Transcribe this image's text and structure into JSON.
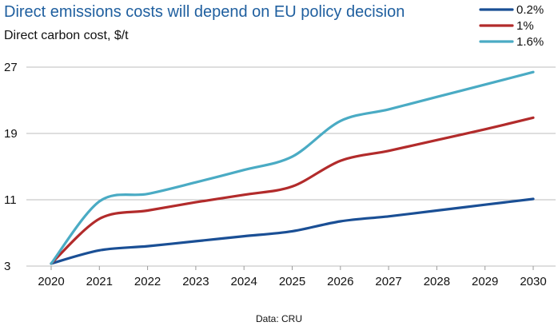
{
  "chart_data": {
    "type": "line",
    "title": "Direct emissions costs will depend on EU policy decision",
    "subtitle": "Direct carbon cost, $/t",
    "xlabel": "",
    "ylabel": "",
    "source": "Data: CRU",
    "x": [
      2020,
      2021,
      2022,
      2023,
      2024,
      2025,
      2026,
      2027,
      2028,
      2029,
      2030
    ],
    "xticks": [
      "2020",
      "2021",
      "2022",
      "2023",
      "2024",
      "2025",
      "2026",
      "2027",
      "2028",
      "2029",
      "2030"
    ],
    "yticks": [
      "3",
      "11",
      "19",
      "27"
    ],
    "ylim": [
      3,
      27
    ],
    "grid": "horizontal",
    "legend_position": "top-right",
    "series": [
      {
        "name": "0.2%",
        "color": "#1a4f95",
        "values": [
          3.3,
          4.9,
          5.4,
          6.0,
          6.6,
          7.2,
          8.4,
          9.0,
          9.7,
          10.4,
          11.1
        ]
      },
      {
        "name": "1%",
        "color": "#b22b2b",
        "values": [
          3.3,
          8.7,
          9.7,
          10.7,
          11.6,
          12.6,
          15.7,
          16.9,
          18.2,
          19.5,
          20.9
        ]
      },
      {
        "name": "1.6%",
        "color": "#4aabc4",
        "values": [
          3.3,
          10.8,
          11.7,
          13.1,
          14.6,
          16.2,
          20.5,
          21.9,
          23.4,
          24.9,
          26.4
        ]
      }
    ]
  }
}
